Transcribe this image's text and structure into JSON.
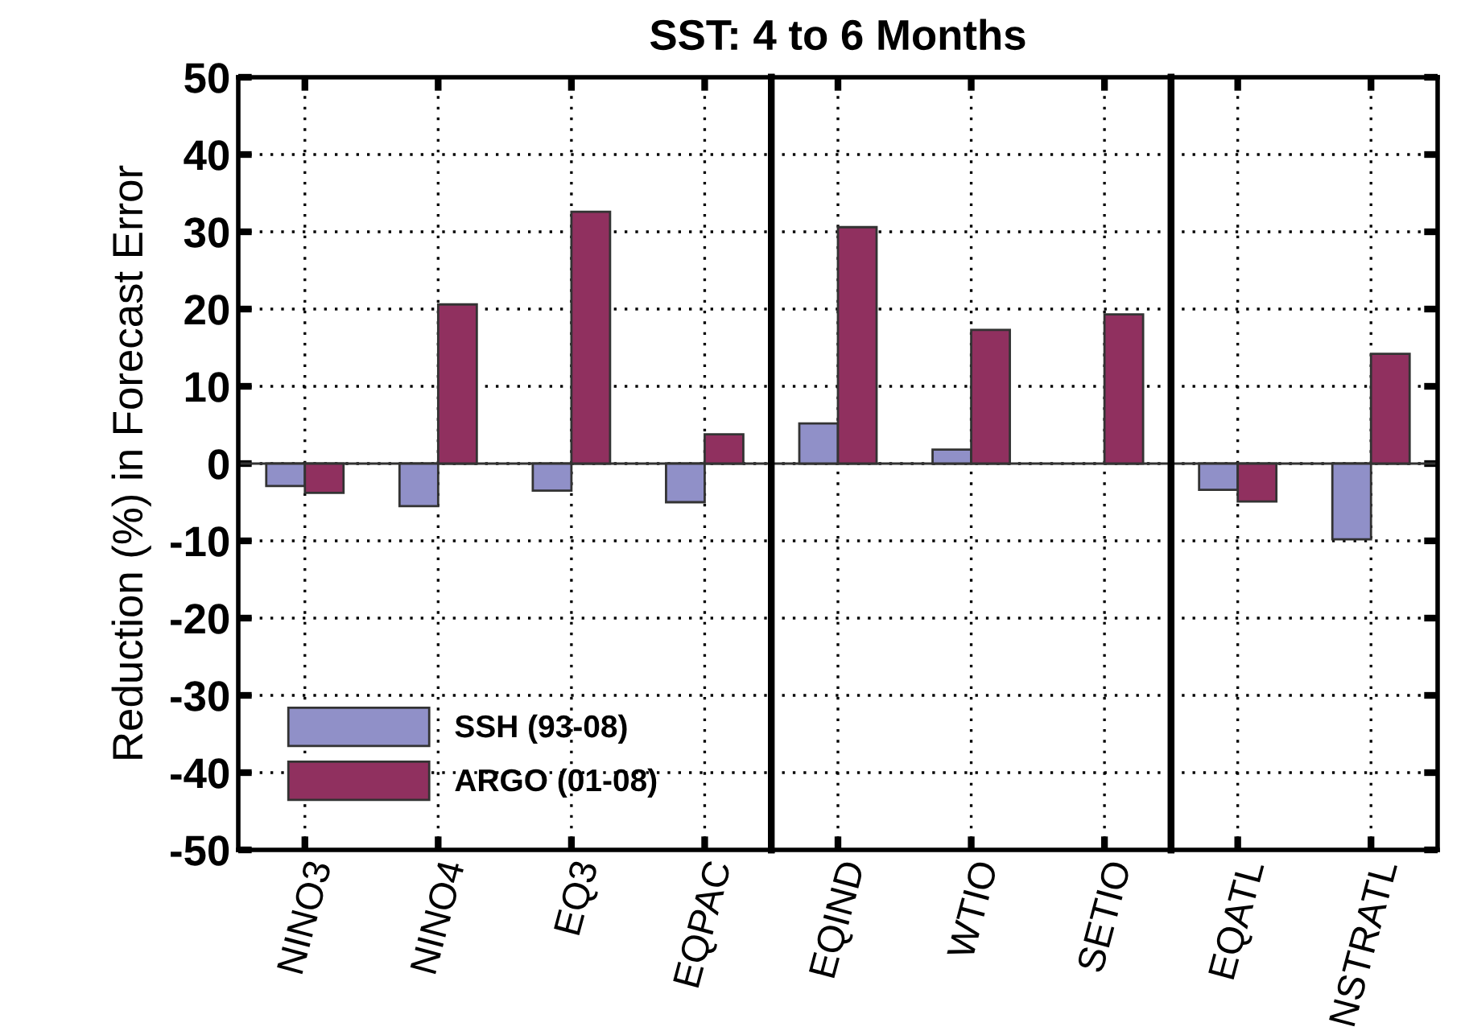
{
  "chart_data": [
    {
      "type": "bar",
      "title": "SST: 4 to 6 Months",
      "ylabel": "Reduction (%) in Forecast Error",
      "categories": [
        "NINO3",
        "NINO4",
        "EQ3",
        "EQPAC"
      ],
      "series": [
        {
          "name": "SSH (93-08)",
          "color": "#9090c8",
          "values": [
            -2.9,
            -5.5,
            -3.5,
            -5.0
          ]
        },
        {
          "name": "ARGO (01-08)",
          "color": "#90305f",
          "values": [
            -3.8,
            20.6,
            32.6,
            3.8
          ]
        }
      ],
      "ylim": [
        -50,
        50
      ],
      "yticks": [
        -50,
        -40,
        -30,
        -20,
        -10,
        0,
        10,
        20,
        30,
        40,
        50
      ],
      "grid": true,
      "legend": "bottom left"
    },
    {
      "type": "bar",
      "categories": [
        "EQIND",
        "WTIO",
        "SETIO"
      ],
      "series": [
        {
          "color": "#9090c8",
          "values": [
            5.2,
            1.8,
            null
          ]
        },
        {
          "color": "#90305f",
          "values": [
            30.6,
            17.3,
            19.3
          ]
        }
      ],
      "ylim": [
        -50,
        50
      ],
      "yticks": [
        -50,
        -40,
        -30,
        -20,
        -10,
        0,
        10,
        20,
        30,
        40,
        50
      ],
      "grid": true,
      "tick_labels": "x"
    },
    {
      "type": "bar",
      "categories": [
        "EQATL",
        "NSTRATL"
      ],
      "series": [
        {
          "color": "#9090c8",
          "values": [
            -3.4,
            -9.8
          ]
        },
        {
          "color": "#90305f",
          "values": [
            -4.9,
            14.2
          ]
        }
      ],
      "ylim": [
        -50,
        50
      ],
      "yticks": [
        -50,
        -40,
        -30,
        -20,
        -10,
        0,
        10,
        20,
        30,
        40,
        50
      ],
      "grid": true,
      "tick_labels": "x"
    }
  ]
}
